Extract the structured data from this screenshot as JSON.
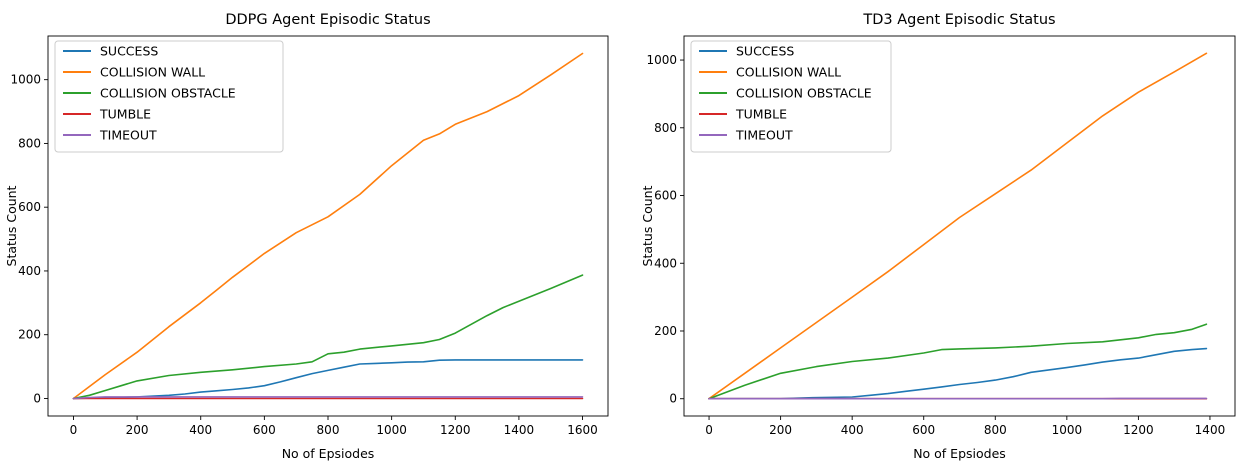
{
  "chart_data": [
    {
      "type": "line",
      "title": "DDPG Agent Episodic Status",
      "xlabel": "No of Epsiodes",
      "ylabel": "Status Count",
      "xlim": [
        -80,
        1680
      ],
      "ylim": [
        -55,
        1137
      ],
      "xticks": [
        0,
        200,
        400,
        600,
        800,
        1000,
        1200,
        1400,
        1600
      ],
      "yticks": [
        0,
        200,
        400,
        600,
        800,
        1000
      ],
      "legend_position": "top-left",
      "grid": false,
      "series": [
        {
          "name": "SUCCESS",
          "color": "#1f77b4",
          "x": [
            0,
            100,
            200,
            300,
            350,
            400,
            450,
            500,
            550,
            600,
            650,
            700,
            750,
            800,
            850,
            900,
            950,
            1000,
            1050,
            1100,
            1150,
            1200,
            1300,
            1400,
            1500,
            1600
          ],
          "y": [
            0,
            2,
            5,
            10,
            14,
            20,
            24,
            28,
            33,
            40,
            52,
            65,
            78,
            88,
            98,
            108,
            110,
            112,
            114,
            115,
            120,
            121,
            121,
            121,
            121,
            121
          ]
        },
        {
          "name": "COLLISION WALL",
          "color": "#ff7f0e",
          "x": [
            0,
            100,
            200,
            300,
            400,
            450,
            500,
            600,
            700,
            800,
            900,
            1000,
            1100,
            1150,
            1200,
            1300,
            1400,
            1500,
            1600
          ],
          "y": [
            0,
            75,
            145,
            225,
            300,
            340,
            380,
            455,
            520,
            570,
            640,
            730,
            810,
            830,
            860,
            900,
            950,
            1015,
            1082
          ]
        },
        {
          "name": "COLLISION OBSTACLE",
          "color": "#2ca02c",
          "x": [
            0,
            50,
            100,
            150,
            200,
            300,
            400,
            500,
            600,
            700,
            750,
            800,
            850,
            900,
            1000,
            1100,
            1150,
            1200,
            1300,
            1350,
            1400,
            1500,
            1600
          ],
          "y": [
            0,
            10,
            25,
            40,
            55,
            72,
            82,
            90,
            100,
            108,
            115,
            140,
            145,
            155,
            165,
            175,
            185,
            205,
            260,
            285,
            305,
            345,
            387
          ]
        },
        {
          "name": "TUMBLE",
          "color": "#d62728",
          "x": [
            0,
            400,
            800,
            1200,
            1600
          ],
          "y": [
            0,
            0,
            0,
            0,
            0
          ]
        },
        {
          "name": "TIMEOUT",
          "color": "#9467bd",
          "x": [
            0,
            50,
            100,
            800,
            1600
          ],
          "y": [
            0,
            3,
            5,
            5,
            5
          ]
        }
      ]
    },
    {
      "type": "line",
      "title": "TD3 Agent Episodic Status",
      "xlabel": "No of Epsiodes",
      "ylabel": "Status Count",
      "xlim": [
        -70,
        1470
      ],
      "ylim": [
        -51,
        1071
      ],
      "xticks": [
        0,
        200,
        400,
        600,
        800,
        1000,
        1200,
        1400
      ],
      "yticks": [
        0,
        200,
        400,
        600,
        800,
        1000
      ],
      "legend_position": "top-left",
      "grid": false,
      "series": [
        {
          "name": "SUCCESS",
          "color": "#1f77b4",
          "x": [
            0,
            200,
            290,
            400,
            450,
            500,
            550,
            600,
            650,
            700,
            750,
            800,
            850,
            900,
            950,
            1000,
            1050,
            1100,
            1150,
            1200,
            1250,
            1300,
            1350,
            1390
          ],
          "y": [
            0,
            0,
            3,
            5,
            10,
            15,
            22,
            28,
            35,
            42,
            48,
            55,
            65,
            78,
            85,
            92,
            100,
            108,
            115,
            120,
            130,
            140,
            145,
            148
          ]
        },
        {
          "name": "COLLISION WALL",
          "color": "#ff7f0e",
          "x": [
            0,
            100,
            200,
            300,
            400,
            500,
            600,
            700,
            800,
            900,
            1000,
            1100,
            1200,
            1300,
            1390
          ],
          "y": [
            0,
            75,
            150,
            225,
            300,
            375,
            455,
            535,
            605,
            675,
            755,
            835,
            905,
            965,
            1020
          ]
        },
        {
          "name": "COLLISION OBSTACLE",
          "color": "#2ca02c",
          "x": [
            0,
            100,
            200,
            300,
            400,
            500,
            600,
            650,
            700,
            800,
            900,
            1000,
            1100,
            1200,
            1250,
            1300,
            1350,
            1390
          ],
          "y": [
            0,
            40,
            75,
            95,
            110,
            120,
            135,
            145,
            147,
            150,
            155,
            163,
            168,
            180,
            190,
            195,
            205,
            220
          ]
        },
        {
          "name": "TUMBLE",
          "color": "#d62728",
          "x": [
            0,
            700,
            1390
          ],
          "y": [
            0,
            0,
            0
          ]
        },
        {
          "name": "TIMEOUT",
          "color": "#9467bd",
          "x": [
            0,
            1100,
            1150,
            1390
          ],
          "y": [
            0,
            0,
            1,
            1
          ]
        }
      ]
    }
  ]
}
